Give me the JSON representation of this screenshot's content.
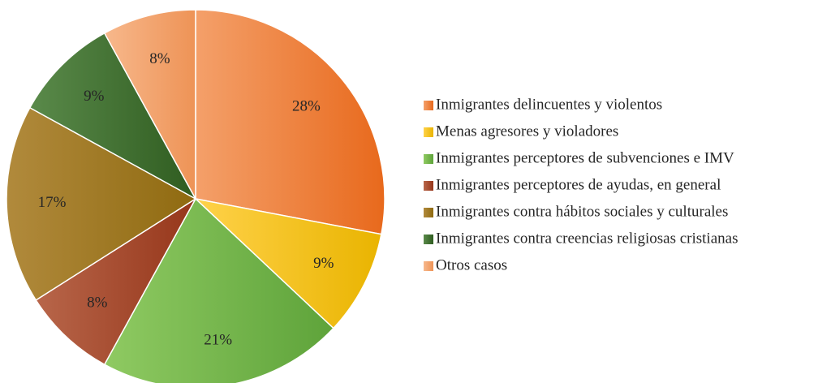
{
  "chart_data": {
    "type": "pie",
    "start_angle_deg": 0,
    "direction": "clockwise",
    "legend_position": "right",
    "slices": [
      {
        "label": "Inmigrantes delincuentes y violentos",
        "value": 28,
        "display": "28%",
        "color_start": "#f4a06a",
        "color_end": "#e8691c"
      },
      {
        "label": "Menas agresores y violadores",
        "value": 9,
        "display": "9%",
        "color_start": "#ffd24a",
        "color_end": "#e9b400"
      },
      {
        "label": "Inmigrantes perceptores de subvenciones e IMV",
        "value": 21,
        "display": "21%",
        "color_start": "#8fca62",
        "color_end": "#5ea33a"
      },
      {
        "label": "Inmigrantes perceptores de ayudas, en general",
        "value": 8,
        "display": "8%",
        "color_start": "#b8664a",
        "color_end": "#96361a"
      },
      {
        "label": "Inmigrantes contra hábitos sociales y culturales",
        "value": 17,
        "display": "17%",
        "color_start": "#b18a3c",
        "color_end": "#8f6a10"
      },
      {
        "label": "Inmigrantes contra creencias religiosas cristianas",
        "value": 9,
        "display": "9%",
        "color_start": "#5a8a4a",
        "color_end": "#2f5c20"
      },
      {
        "label": "Otros casos",
        "value": 8,
        "display": "8%",
        "color_start": "#f7b88c",
        "color_end": "#ee9356"
      }
    ]
  }
}
